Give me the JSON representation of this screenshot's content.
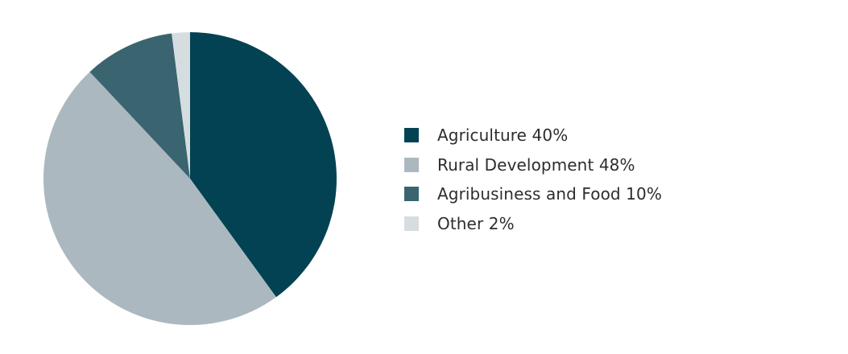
{
  "chart_data": {
    "type": "pie",
    "title": "",
    "slices": [
      {
        "label": "Agriculture",
        "value": 40,
        "color": "#024253"
      },
      {
        "label": "Rural Development",
        "value": 48,
        "color": "#abb8bf"
      },
      {
        "label": "Agribusiness and Food",
        "value": 10,
        "color": "#3a6470"
      },
      {
        "label": "Other",
        "value": 2,
        "color": "#d6dde1"
      }
    ],
    "unit": "%",
    "start_angle": "12 o'clock",
    "direction": "clockwise",
    "legend_position": "right"
  },
  "legend": {
    "items": [
      {
        "text": "Agriculture 40%"
      },
      {
        "text": "Rural Development 48%"
      },
      {
        "text": "Agribusiness and Food 10%"
      },
      {
        "text": "Other 2%"
      }
    ]
  }
}
